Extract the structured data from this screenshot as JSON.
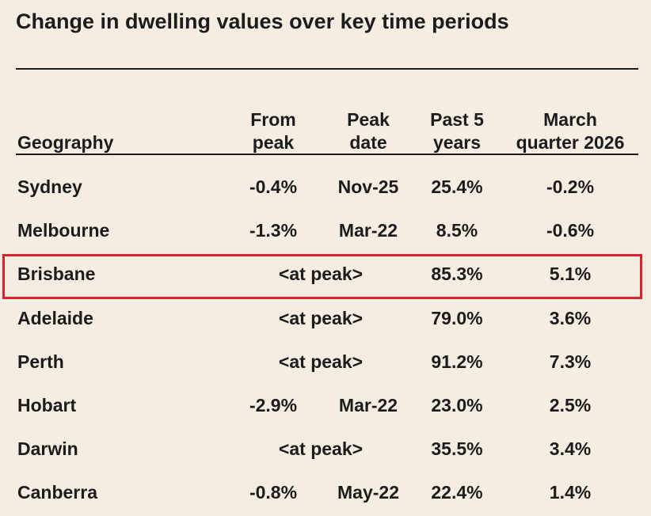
{
  "title": "Change in dwelling values over key time periods",
  "table": {
    "headers": [
      [
        "Geography"
      ],
      [
        "From",
        "peak"
      ],
      [
        "Peak",
        "date"
      ],
      [
        "Past 5",
        "years"
      ],
      [
        "March",
        "quarter 2026"
      ]
    ],
    "rows": [
      {
        "cells": [
          "Sydney",
          "-0.4%",
          "Nov-25",
          "25.4%",
          "-0.2%"
        ]
      },
      {
        "cells": [
          "Melbourne",
          "-1.3%",
          "Mar-22",
          "8.5%",
          "-0.6%"
        ]
      },
      {
        "cells": [
          "Brisbane",
          "<at peak>",
          "85.3%",
          "5.1%"
        ],
        "highlight": true
      },
      {
        "cells": [
          "Adelaide",
          "<at peak>",
          "79.0%",
          "3.6%"
        ]
      },
      {
        "cells": [
          "Perth",
          "<at peak>",
          "91.2%",
          "7.3%"
        ]
      },
      {
        "cells": [
          "Hobart",
          "-2.9%",
          "Mar-22",
          "23.0%",
          "2.5%"
        ]
      },
      {
        "cells": [
          "Darwin",
          "<at peak>",
          "35.5%",
          "3.4%"
        ]
      },
      {
        "cells": [
          "Canberra",
          "-0.8%",
          "May-22",
          "22.4%",
          "1.4%"
        ]
      }
    ]
  }
}
